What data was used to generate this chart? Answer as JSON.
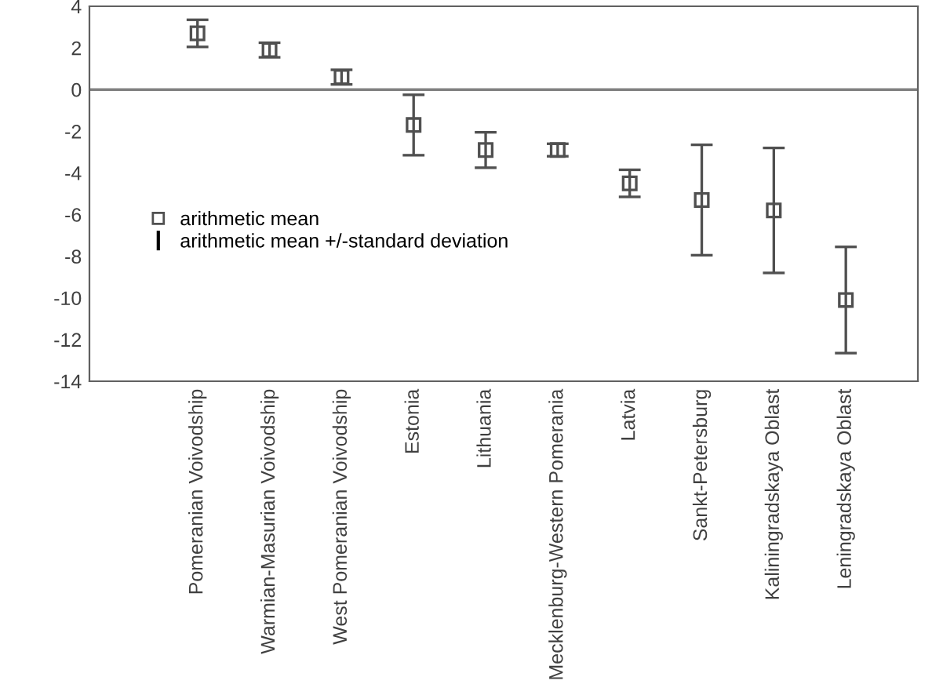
{
  "chart_data": {
    "type": "scatter",
    "categories": [
      "Pomeranian Voivodship",
      "Warmian-Masurian Voivodship",
      "West Pomeranian Voivodship",
      "Estonia",
      "Lithuania",
      "Mecklenburg-Western Pomerania",
      "Latvia",
      "Sankt-Petersburg",
      "Kaliningradskaya Oblast",
      "Leningradskaya Oblast"
    ],
    "series": [
      {
        "name": "arithmetic mean",
        "color": "#505050",
        "values": [
          2.7,
          1.9,
          0.6,
          -1.7,
          -2.9,
          -2.9,
          -4.5,
          -5.3,
          -5.8,
          -10.1
        ],
        "errors": [
          0.65,
          0.35,
          0.35,
          1.45,
          0.85,
          0.3,
          0.65,
          2.65,
          3.0,
          2.55
        ]
      }
    ],
    "annotations": [
      "arithmetic mean +/-standard deviation"
    ],
    "ylim": [
      -14,
      4
    ],
    "yticks": [
      4,
      2,
      0,
      {
        "value": -2,
        "label": "-2"
      },
      {
        "value": -4,
        "label": "-4"
      },
      {
        "value": -6,
        "label": "-6"
      },
      {
        "value": -8,
        "label": "-8"
      },
      {
        "value": -10,
        "label": "-10"
      },
      {
        "value": -12,
        "label": "-12"
      },
      {
        "value": -14,
        "label": "-14"
      }
    ],
    "ref_lines": [
      {
        "axis": "y",
        "value": 0,
        "color": "#808080"
      }
    ],
    "marker": "square",
    "legend": "left",
    "grid": false
  }
}
